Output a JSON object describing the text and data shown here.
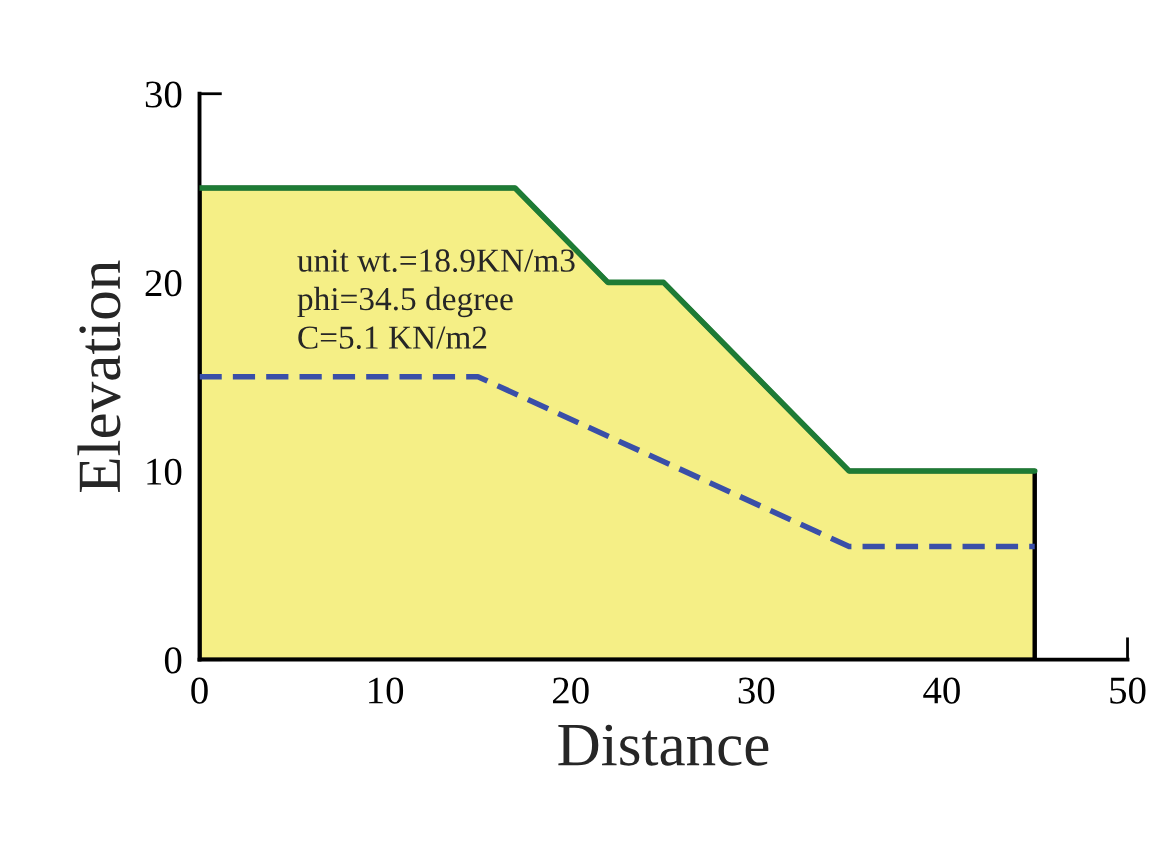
{
  "chart_data": {
    "type": "area",
    "xlabel": "Distance",
    "ylabel": "Elevation",
    "series": [
      {
        "color": "#f5ef86",
        "x": [
          0,
          17,
          22,
          25,
          35,
          45
        ],
        "values": [
          25,
          25,
          20,
          20,
          10,
          10
        ]
      },
      {
        "type": "line",
        "color": "#1e7b35",
        "x": [
          0,
          17,
          22,
          25,
          35,
          45
        ],
        "values": [
          25,
          25,
          20,
          20,
          10,
          10
        ],
        "line_style": "solid"
      },
      {
        "type": "line",
        "color": "#3a4fa8",
        "x": [
          0,
          15,
          35,
          45
        ],
        "values": [
          15,
          15,
          6,
          6
        ],
        "line_style": "dashed"
      }
    ],
    "annotations": [
      "unit wt.=18.9KN/m3",
      "phi=34.5 degree",
      "C=5.1 KN/m2"
    ],
    "xlim": [
      0,
      50
    ],
    "xticks": [
      0,
      10,
      20,
      30,
      40,
      50
    ],
    "ylim": [
      0,
      30
    ],
    "yticks": [
      0,
      10,
      20,
      30
    ],
    "grid": false,
    "legend": false
  }
}
